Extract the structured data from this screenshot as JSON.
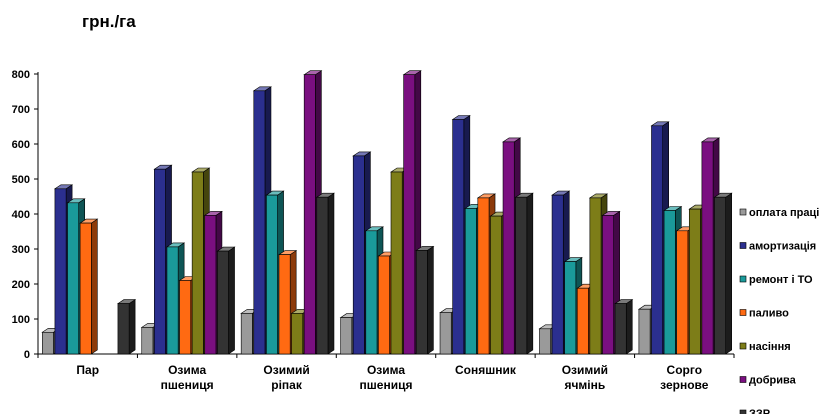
{
  "chart_data": {
    "type": "bar",
    "title": "грн./га",
    "categories": [
      [
        "Пар"
      ],
      [
        "Озима",
        "пшениця"
      ],
      [
        "Озимий",
        "ріпак"
      ],
      [
        "Озима",
        "пшениця"
      ],
      [
        "Соняшник"
      ],
      [
        "Озимий",
        "ячмінь"
      ],
      [
        "Сорго",
        "зернове"
      ]
    ],
    "yticks": [
      "0",
      "100",
      "200",
      "300",
      "400",
      "500",
      "600",
      "700",
      "800"
    ],
    "ylim": [
      0,
      800
    ],
    "legend_position": "right",
    "series": [
      {
        "name": "оплата праці",
        "color": "#9a9a9a",
        "values": [
          62,
          76,
          116,
          104,
          118,
          72,
          128
        ]
      },
      {
        "name": "амортизація",
        "color": "#2b2f8f",
        "values": [
          472,
          528,
          752,
          566,
          670,
          454,
          652
        ]
      },
      {
        "name": "ремонт і ТО",
        "color": "#1a9a9a",
        "values": [
          432,
          306,
          454,
          352,
          416,
          264,
          410
        ]
      },
      {
        "name": "паливо",
        "color": "#ff6a12",
        "values": [
          374,
          210,
          284,
          280,
          446,
          188,
          352
        ]
      },
      {
        "name": "насіння",
        "color": "#7d7d18",
        "values": [
          0,
          520,
          116,
          520,
          394,
          446,
          414
        ]
      },
      {
        "name": "добрива",
        "color": "#7a0f80",
        "values": [
          0,
          396,
          798,
          798,
          606,
          396,
          606
        ]
      },
      {
        "name": "ЗЗР",
        "color": "#333333",
        "values": [
          144,
          294,
          448,
          296,
          448,
          144,
          448
        ]
      }
    ]
  }
}
